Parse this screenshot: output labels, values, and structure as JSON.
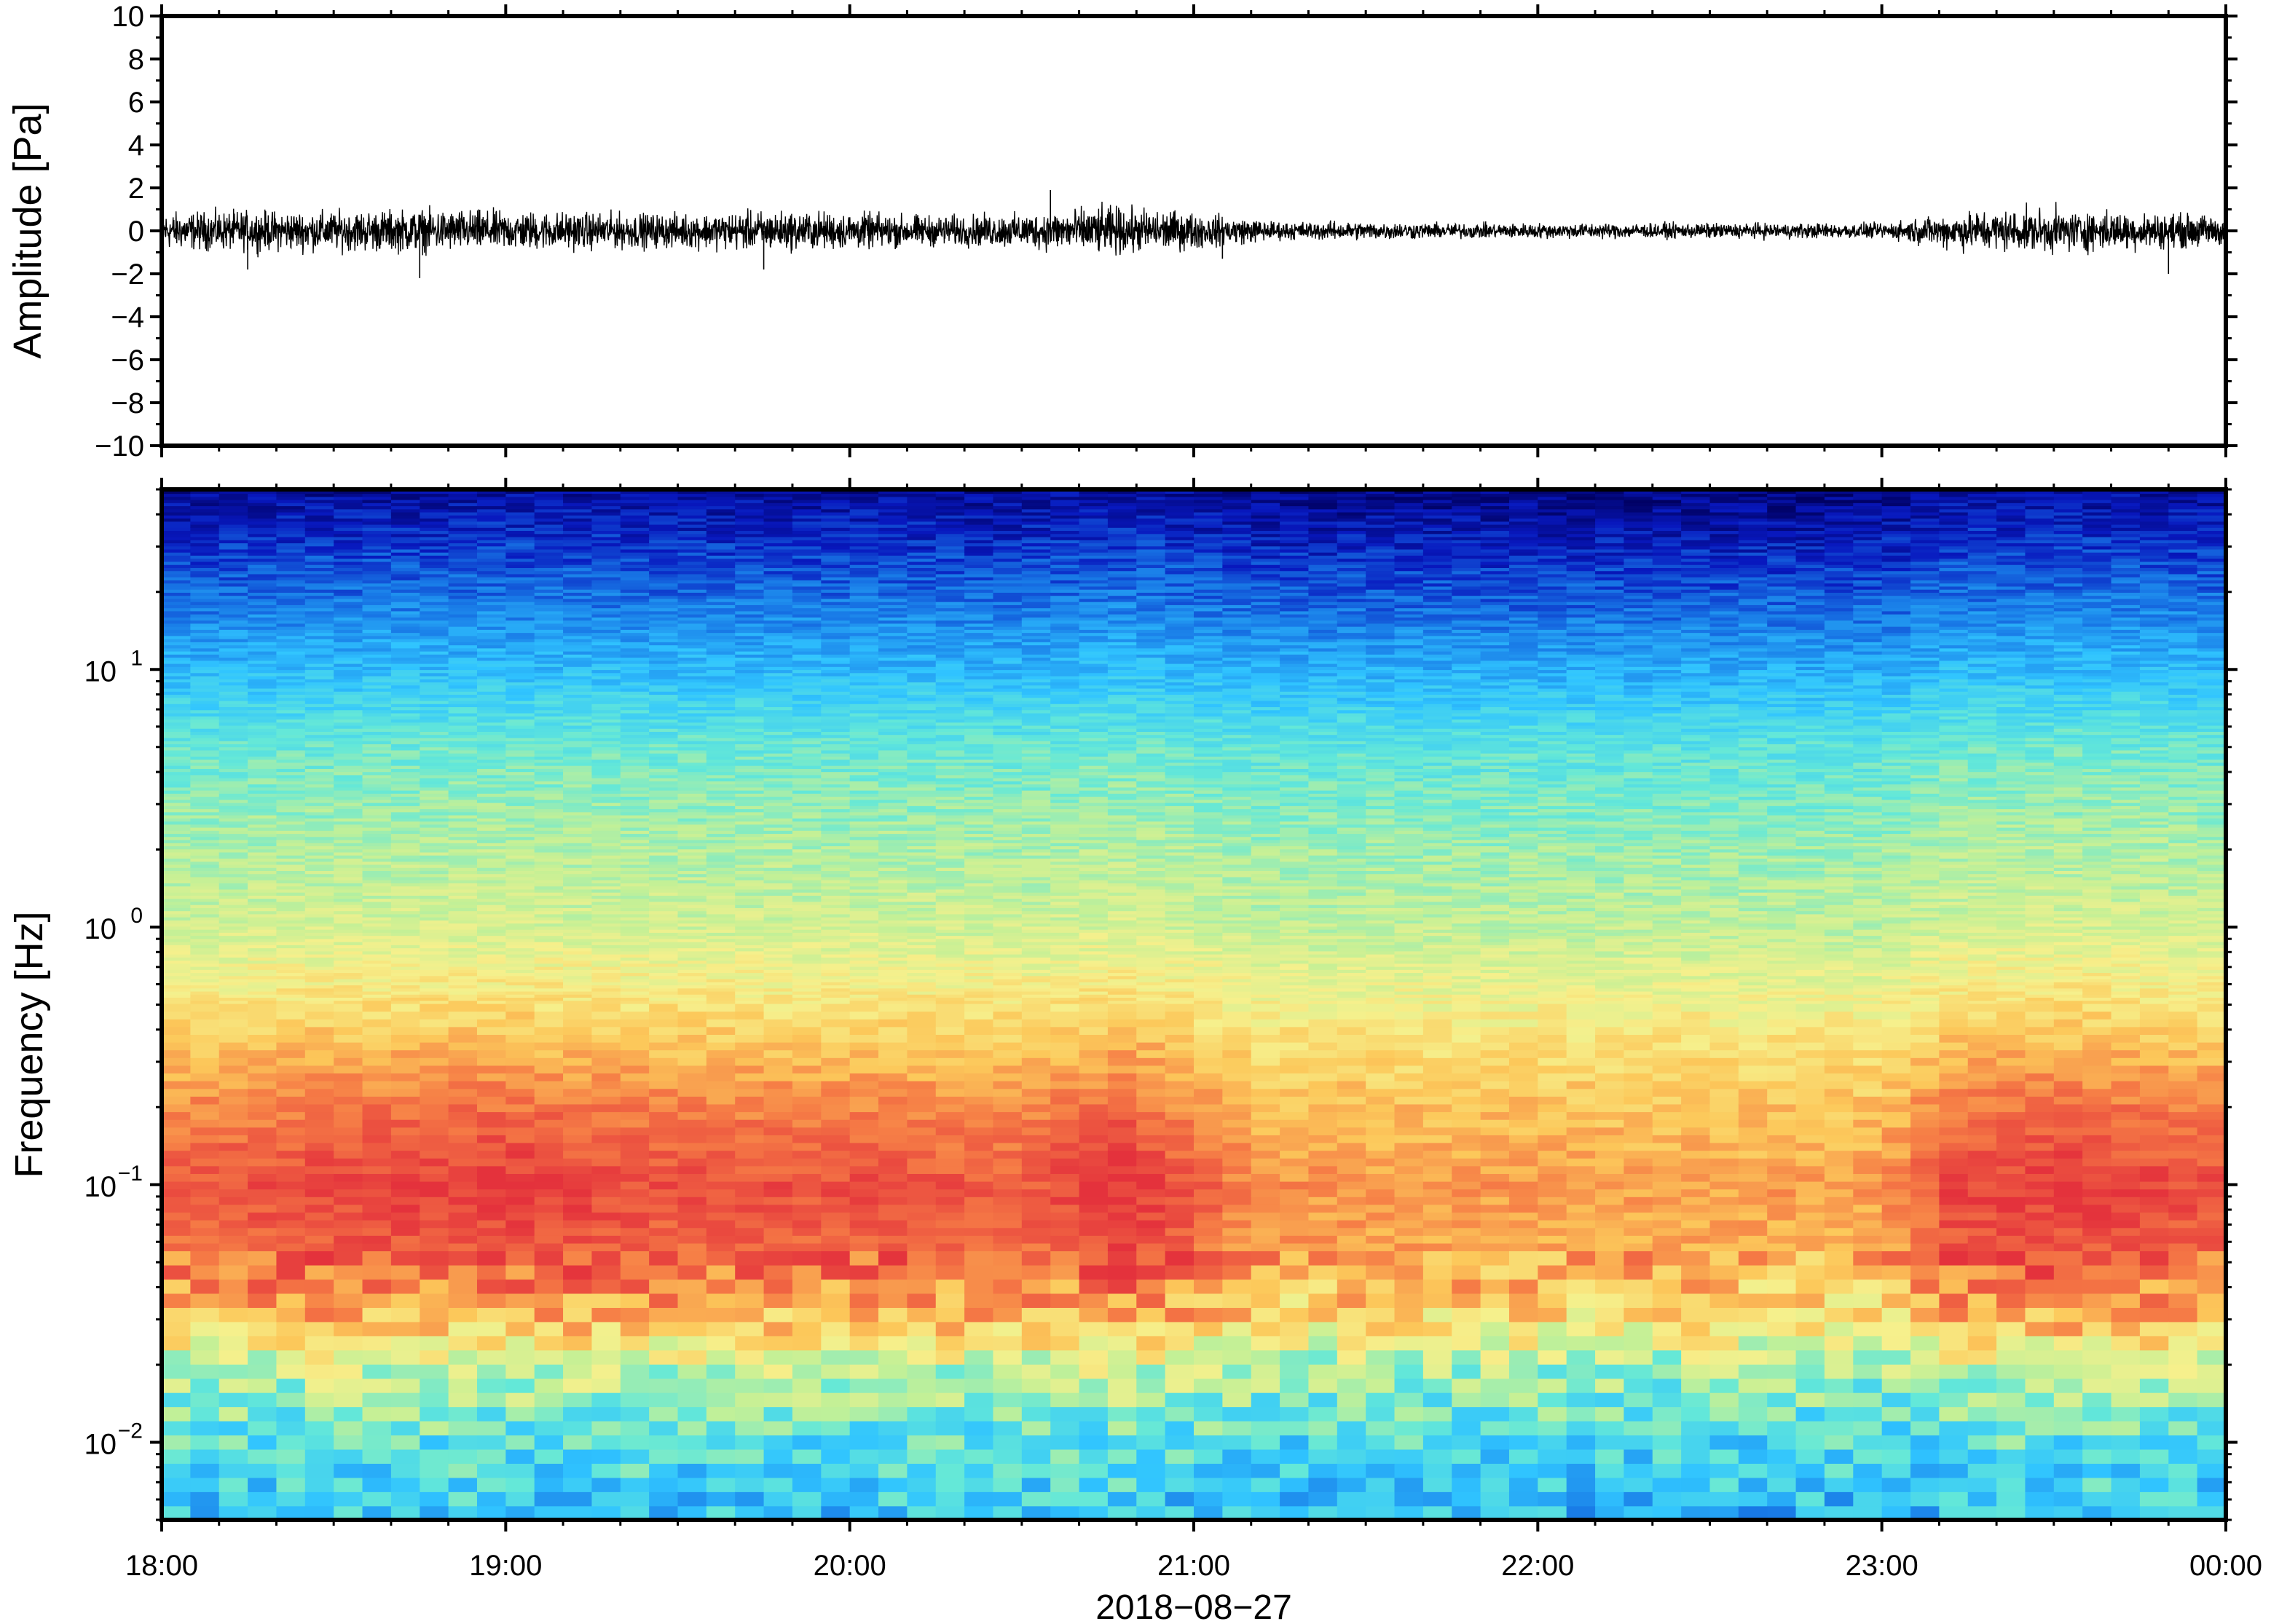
{
  "chart_data": [
    {
      "type": "line",
      "panel": "waveform",
      "title": "",
      "ylabel": "Amplitude [Pa]",
      "xlabel": "",
      "ylim": [
        -10,
        10
      ],
      "yticks": [
        10,
        8,
        6,
        4,
        2,
        0,
        -2,
        -4,
        -6,
        -8,
        -10
      ],
      "ytick_labels": [
        "10",
        "8",
        "6",
        "4",
        "2",
        "0",
        "−2",
        "−4",
        "−6",
        "−8",
        "−10"
      ],
      "xlim": [
        "2018-08-27T18:00",
        "2018-08-28T00:00"
      ],
      "xticks": [
        "18:00",
        "19:00",
        "20:00",
        "21:00",
        "22:00",
        "23:00",
        "00:00"
      ],
      "series": [
        {
          "color": "#000000",
          "envelope": {
            "x_hours": [
              18.0,
              18.25,
              18.5,
              18.75,
              19.0,
              19.25,
              19.5,
              19.75,
              20.0,
              20.25,
              20.5,
              20.75,
              21.0,
              21.25,
              21.5,
              21.75,
              22.0,
              22.25,
              22.5,
              22.75,
              23.0,
              23.25,
              23.5,
              23.75,
              24.0
            ],
            "amplitude_pa": [
              1.2,
              1.3,
              1.3,
              1.4,
              1.3,
              1.2,
              1.1,
              1.3,
              1.2,
              1.0,
              1.1,
              1.6,
              1.2,
              0.6,
              0.6,
              0.5,
              0.5,
              0.5,
              0.5,
              0.5,
              0.5,
              1.3,
              1.4,
              1.2,
              1.0
            ]
          },
          "peaks": [
            {
              "time": "18:15",
              "value": -1.8
            },
            {
              "time": "18:45",
              "value": -2.2
            },
            {
              "time": "19:45",
              "value": -1.8
            },
            {
              "time": "20:35",
              "value": 1.9
            },
            {
              "time": "21:05",
              "value": -1.3
            },
            {
              "time": "23:50",
              "value": -2.0
            }
          ]
        }
      ],
      "grid": false
    },
    {
      "type": "heatmap",
      "panel": "spectrogram",
      "title": "",
      "ylabel": "Frequency [Hz]",
      "xlabel": "2018−08−27",
      "yscale": "log",
      "ylim": [
        0.005,
        50
      ],
      "yticks": [
        0.01,
        0.1,
        1,
        10
      ],
      "ytick_labels": [
        {
          "base": "10",
          "exp": "−2"
        },
        {
          "base": "10",
          "exp": "−1"
        },
        {
          "base": "10",
          "exp": "0"
        },
        {
          "base": "10",
          "exp": "1"
        }
      ],
      "xlim": [
        "2018-08-27T18:00",
        "2018-08-28T00:00"
      ],
      "xticks": [
        "18:00",
        "19:00",
        "20:00",
        "21:00",
        "22:00",
        "23:00",
        "00:00"
      ],
      "colormap": "spectral (red = high power, blue = low power)",
      "profile": {
        "frequency_hz": [
          0.005,
          0.01,
          0.02,
          0.03,
          0.05,
          0.1,
          0.2,
          0.5,
          1,
          2,
          5,
          10,
          20,
          50
        ],
        "relative_power": [
          0.32,
          0.4,
          0.55,
          0.74,
          0.86,
          0.9,
          0.82,
          0.67,
          0.57,
          0.52,
          0.44,
          0.3,
          0.18,
          0.05
        ]
      },
      "time_energy": {
        "x_hours": [
          18.0,
          18.5,
          19.0,
          19.5,
          20.0,
          20.5,
          20.8,
          21.2,
          21.5,
          22.0,
          22.5,
          23.0,
          23.2,
          23.5,
          24.0
        ],
        "level": [
          0.9,
          1.0,
          1.05,
          0.95,
          0.95,
          0.9,
          1.1,
          0.7,
          0.68,
          0.66,
          0.64,
          0.65,
          1.0,
          1.05,
          0.95
        ]
      }
    }
  ]
}
